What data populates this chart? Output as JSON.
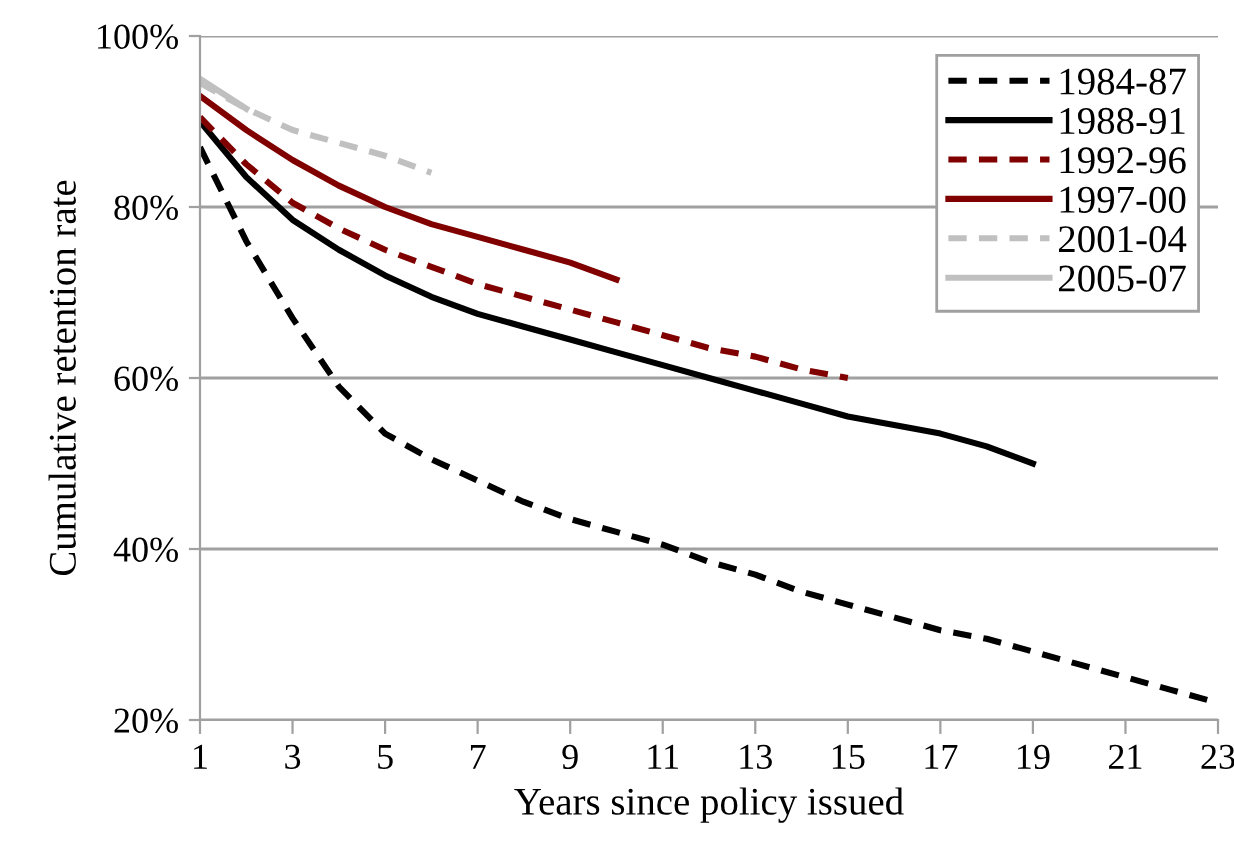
{
  "chart_data": {
    "type": "line",
    "xlabel": "Years since policy issued",
    "ylabel": "Cumulative retention rate",
    "xlim": [
      1,
      23
    ],
    "xticks": [
      1,
      3,
      5,
      7,
      9,
      11,
      13,
      15,
      17,
      19,
      21,
      23
    ],
    "ylim": [
      20,
      100
    ],
    "yticks": [
      {
        "value": 20,
        "label": "20%"
      },
      {
        "value": 40,
        "label": "40%"
      },
      {
        "value": 60,
        "label": "60%"
      },
      {
        "value": 80,
        "label": "80%"
      },
      {
        "value": 100,
        "label": "100%"
      }
    ],
    "grid": "y",
    "legend": "top right",
    "series": [
      {
        "name": "1984-87",
        "color": "#000000",
        "line_style": "dashed",
        "x": [
          1,
          2,
          3,
          4,
          5,
          6,
          7,
          8,
          9,
          10,
          11,
          12,
          13,
          14,
          15,
          16,
          17,
          18,
          19,
          20,
          21,
          22,
          23
        ],
        "values": [
          87,
          76,
          67,
          59,
          53.5,
          50.5,
          48,
          45.5,
          43.5,
          42,
          40.5,
          38.5,
          37,
          35,
          33.5,
          32,
          30.5,
          29.5,
          28,
          26.5,
          25,
          23.5,
          22
        ]
      },
      {
        "name": "1988-91",
        "color": "#000000",
        "line_style": "solid",
        "x": [
          1,
          2,
          3,
          4,
          5,
          6,
          7,
          8,
          9,
          10,
          11,
          12,
          13,
          14,
          15,
          16,
          17,
          18,
          19
        ],
        "values": [
          90,
          83.5,
          78.5,
          75,
          72,
          69.5,
          67.5,
          66,
          64.5,
          63,
          61.5,
          60,
          58.5,
          57,
          55.5,
          54.5,
          53.5,
          52,
          50
        ]
      },
      {
        "name": "1992-96",
        "color": "#800000",
        "line_style": "dashed",
        "x": [
          1,
          2,
          3,
          4,
          5,
          6,
          7,
          8,
          9,
          10,
          11,
          12,
          13,
          14,
          15
        ],
        "values": [
          90.5,
          85,
          80.5,
          77.5,
          75,
          73,
          71,
          69.5,
          68,
          66.5,
          65,
          63.5,
          62.5,
          61,
          60
        ]
      },
      {
        "name": "1997-00",
        "color": "#800000",
        "line_style": "solid",
        "x": [
          1,
          2,
          3,
          4,
          5,
          6,
          7,
          8,
          9,
          10
        ],
        "values": [
          93,
          89,
          85.5,
          82.5,
          80,
          78,
          76.5,
          75,
          73.5,
          71.5
        ]
      },
      {
        "name": "2001-04",
        "color": "#c0c0c0",
        "line_style": "dashed",
        "x": [
          1,
          2,
          3,
          4,
          5,
          6
        ],
        "values": [
          94.5,
          91.5,
          89,
          87.5,
          86,
          84
        ]
      },
      {
        "name": "2005-07",
        "color": "#c0c0c0",
        "line_style": "solid",
        "x": [
          1,
          2
        ],
        "values": [
          95,
          91.5
        ]
      }
    ]
  }
}
